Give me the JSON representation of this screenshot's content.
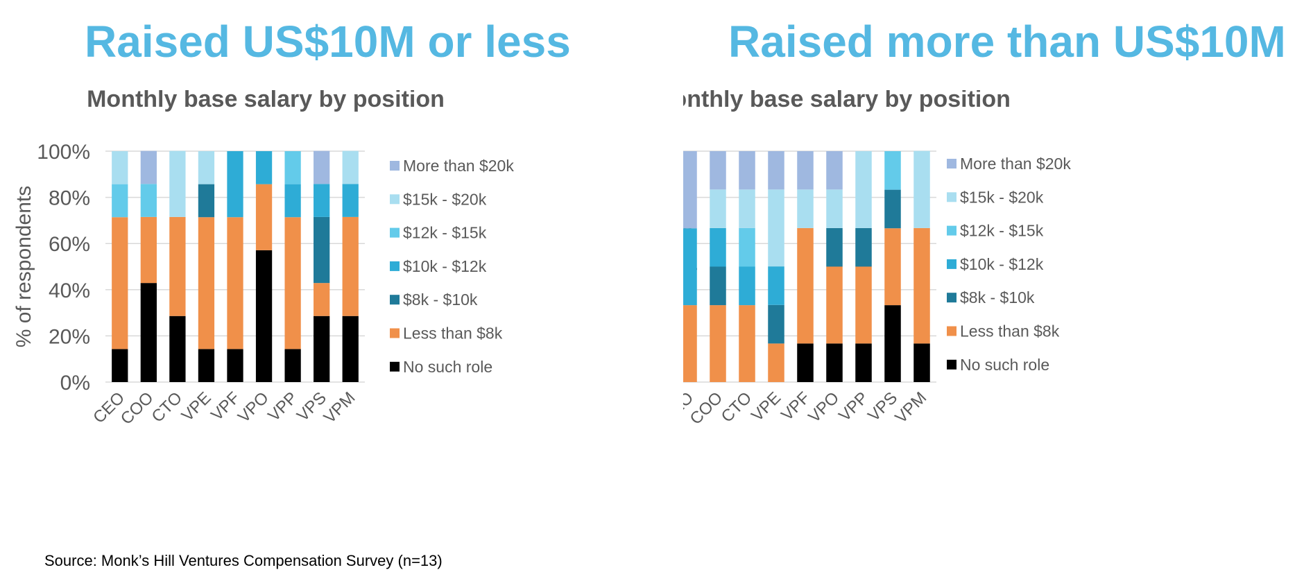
{
  "headings": {
    "left": "Raised US$10M or less",
    "right": "Raised more than US$10M"
  },
  "source": "Source: Monk’s Hill Ventures Compensation Survey (n=13)",
  "colors": {
    "heading": "#55b8e2",
    "chart_title": "#595959",
    "axis_text": "#595959",
    "gridline": "#d9d9d9"
  },
  "chart_data": [
    {
      "type": "bar",
      "stacked": true,
      "title": "Monthly base salary by position",
      "xlabel": "",
      "ylabel": "% of respondents",
      "ylim": [
        0,
        100
      ],
      "yticks": [
        "0%",
        "20%",
        "40%",
        "60%",
        "80%",
        "100%"
      ],
      "grid": true,
      "legend_position": "right",
      "categories": [
        "CEO",
        "COO",
        "CTO",
        "VPE",
        "VPF",
        "VPO",
        "VPP",
        "VPS",
        "VPM"
      ],
      "series": [
        {
          "name": "No such role",
          "color": "#000000",
          "values": [
            14.3,
            42.9,
            28.6,
            14.3,
            14.3,
            57.1,
            14.3,
            28.6,
            28.6
          ]
        },
        {
          "name": "Less than $8k",
          "color": "#f0904a",
          "values": [
            57.1,
            28.6,
            42.9,
            57.1,
            57.1,
            28.6,
            57.1,
            14.3,
            42.9
          ]
        },
        {
          "name": "$8k - $10k",
          "color": "#1f7a99",
          "values": [
            0,
            0,
            0,
            14.3,
            0,
            0,
            0,
            28.6,
            0
          ]
        },
        {
          "name": "$10k - $12k",
          "color": "#2eacd6",
          "values": [
            0,
            0,
            0,
            0,
            28.6,
            14.3,
            14.3,
            14.3,
            14.3
          ]
        },
        {
          "name": "$12k - $15k",
          "color": "#63cbea",
          "values": [
            14.3,
            14.3,
            0,
            0,
            0,
            0,
            14.3,
            0,
            0
          ]
        },
        {
          "name": "$15k - $20k",
          "color": "#a9def0",
          "values": [
            14.3,
            0,
            28.6,
            14.3,
            0,
            0,
            0,
            0,
            14.3
          ]
        },
        {
          "name": "More than $20k",
          "color": "#9fb8e0",
          "values": [
            0,
            14.3,
            0,
            0,
            0,
            0,
            0,
            14.3,
            0
          ]
        }
      ]
    },
    {
      "type": "bar",
      "stacked": true,
      "title": "Monthly base salary by position",
      "xlabel": "",
      "ylabel": "% of respondents",
      "ylim": [
        0,
        100
      ],
      "yticks": [
        "0%",
        "20%",
        "40%",
        "60%",
        "80%",
        "100%"
      ],
      "grid": true,
      "legend_position": "right",
      "categories": [
        "CEO",
        "COO",
        "CTO",
        "VPE",
        "VPF",
        "VPO",
        "VPP",
        "VPS",
        "VPM"
      ],
      "series": [
        {
          "name": "No such role",
          "color": "#000000",
          "values": [
            0,
            0,
            0,
            0,
            16.7,
            16.7,
            16.7,
            33.3,
            16.7
          ]
        },
        {
          "name": "Less than $8k",
          "color": "#f0904a",
          "values": [
            33.3,
            33.3,
            33.3,
            16.7,
            50,
            33.3,
            33.3,
            33.3,
            50
          ]
        },
        {
          "name": "$8k - $10k",
          "color": "#1f7a99",
          "values": [
            0,
            16.7,
            0,
            16.7,
            0,
            16.7,
            16.7,
            16.7,
            0
          ]
        },
        {
          "name": "$10k - $12k",
          "color": "#2eacd6",
          "values": [
            33.3,
            16.7,
            16.7,
            16.7,
            0,
            0,
            0,
            0,
            0
          ]
        },
        {
          "name": "$12k - $15k",
          "color": "#63cbea",
          "values": [
            0,
            0,
            16.7,
            0,
            0,
            0,
            0,
            16.7,
            0
          ]
        },
        {
          "name": "$15k - $20k",
          "color": "#a9def0",
          "values": [
            0,
            16.7,
            16.7,
            33.3,
            16.7,
            16.7,
            33.3,
            0,
            33.4
          ]
        },
        {
          "name": "More than $20k",
          "color": "#9fb8e0",
          "values": [
            33.4,
            16.6,
            16.6,
            16.6,
            16.6,
            16.6,
            0,
            0,
            0
          ]
        }
      ]
    }
  ]
}
